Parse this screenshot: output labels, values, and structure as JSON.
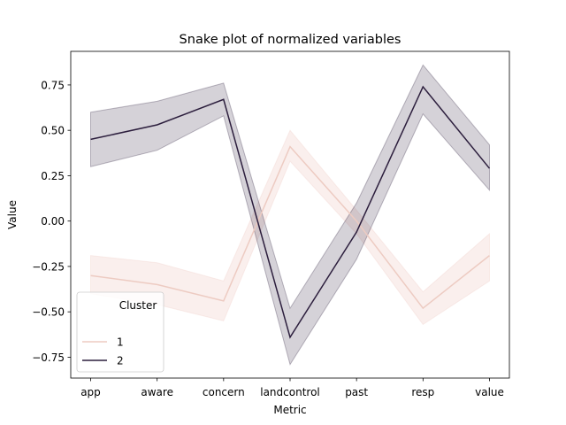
{
  "chart_data": {
    "type": "line",
    "title": "Snake plot of normalized variables",
    "xlabel": "Metric",
    "ylabel": "Value",
    "categories": [
      "app",
      "aware",
      "concern",
      "landcontrol",
      "past",
      "resp",
      "value"
    ],
    "ylim": [
      -0.865,
      0.935
    ],
    "yticks": [
      -0.75,
      -0.5,
      -0.25,
      0.0,
      0.25,
      0.5,
      0.75
    ],
    "ytick_labels": [
      "−0.75",
      "−0.50",
      "−0.25",
      "0.00",
      "0.25",
      "0.50",
      "0.75"
    ],
    "grid": false,
    "legend": {
      "title": "Cluster",
      "position": "bottom-left"
    },
    "series": [
      {
        "name": "1",
        "color": "#edcbc2",
        "values": [
          -0.3,
          -0.35,
          -0.44,
          0.41,
          0.0,
          -0.48,
          -0.19
        ],
        "ci_low": [
          -0.4,
          -0.46,
          -0.55,
          0.33,
          -0.07,
          -0.57,
          -0.33
        ],
        "ci_high": [
          -0.19,
          -0.23,
          -0.33,
          0.5,
          0.06,
          -0.39,
          -0.07
        ]
      },
      {
        "name": "2",
        "color": "#2c1e3d",
        "values": [
          0.45,
          0.53,
          0.67,
          -0.64,
          -0.06,
          0.74,
          0.29
        ],
        "ci_low": [
          0.3,
          0.39,
          0.58,
          -0.79,
          -0.21,
          0.59,
          0.17
        ],
        "ci_high": [
          0.6,
          0.66,
          0.76,
          -0.48,
          0.1,
          0.86,
          0.42
        ]
      }
    ]
  }
}
